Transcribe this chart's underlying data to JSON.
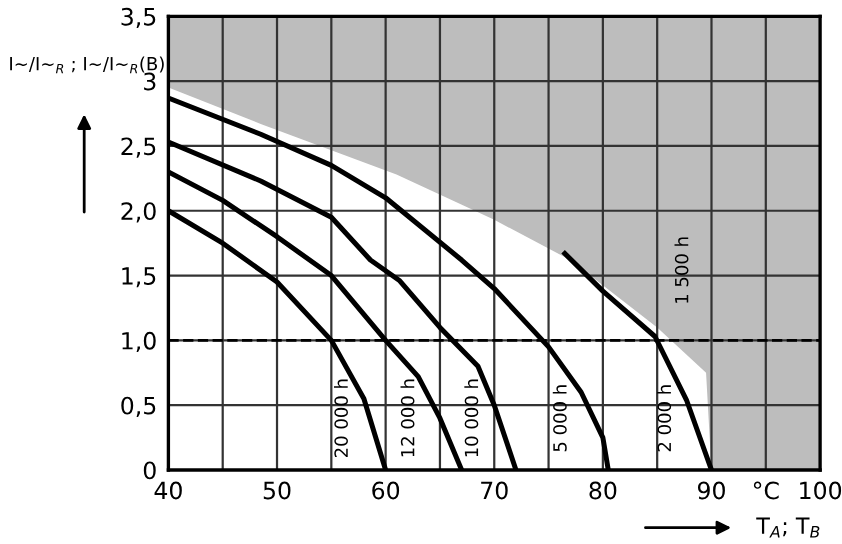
{
  "chart_data": {
    "type": "line",
    "ylabel": "I~/I~$_{R}$ ; I~/I~$_{R}$(B)",
    "xlabel": "T$_{A}$; T$_{B}$",
    "xlim": [
      40,
      100
    ],
    "ylim": [
      0,
      3.5
    ],
    "xticks": [
      40,
      {
        "value": 45,
        "label": null
      },
      50,
      {
        "value": 55,
        "label": null
      },
      60,
      {
        "value": 65,
        "label": null
      },
      70,
      {
        "value": 75,
        "label": null
      },
      80,
      {
        "value": 85,
        "label": null
      },
      90,
      {
        "value": 95,
        "label": "°C"
      },
      100
    ],
    "yticks": [
      {
        "value": 0,
        "label": "0"
      },
      {
        "value": 0.5,
        "label": "0,5"
      },
      {
        "value": 1.0,
        "label": "1,0"
      },
      {
        "value": 1.5,
        "label": "1,5"
      },
      {
        "value": 2.0,
        "label": "2,0"
      },
      {
        "value": 2.5,
        "label": "2,5"
      },
      {
        "value": 3.0,
        "label": "3"
      },
      {
        "value": 3.5,
        "label": "3,5"
      }
    ],
    "grid": true,
    "legend": false,
    "marker": "none",
    "line_style": "solid",
    "series": [
      {
        "type": "area",
        "color": "#ffffff",
        "x": [
          40,
          48.5,
          61,
          70,
          77,
          85,
          89.5,
          90
        ],
        "values": [
          2.95,
          2.67,
          2.28,
          1.93,
          1.62,
          1.1,
          0.75,
          0
        ]
      },
      {
        "name": "20 000 h",
        "color": "#000000",
        "x": [
          40,
          45,
          50,
          55,
          58,
          60
        ],
        "values": [
          2.0,
          1.75,
          1.45,
          1.0,
          0.55,
          0
        ]
      },
      {
        "name": "12 000 h",
        "color": "#000000",
        "x": [
          40,
          45,
          50,
          55,
          60,
          63,
          65,
          67
        ],
        "values": [
          2.3,
          2.08,
          1.8,
          1.5,
          1.0,
          0.72,
          0.4,
          0
        ]
      },
      {
        "name": "10 000 h",
        "color": "#000000",
        "x": [
          40,
          48.5,
          55,
          58.6,
          61.3,
          65,
          68.5,
          70,
          72
        ],
        "values": [
          2.53,
          2.23,
          1.95,
          1.62,
          1.46,
          1.1,
          0.8,
          0.5,
          0
        ]
      },
      {
        "name": "5 000 h",
        "color": "#000000",
        "x": [
          40,
          48.5,
          55,
          60,
          67,
          70,
          75,
          78,
          80,
          80.5
        ],
        "values": [
          2.87,
          2.59,
          2.35,
          2.1,
          1.62,
          1.4,
          0.95,
          0.6,
          0.25,
          0
        ]
      },
      {
        "name": "2 000 h",
        "color": "#000000",
        "x": [
          76.5,
          80,
          84.8,
          87.7,
          90
        ],
        "values": [
          1.67,
          1.38,
          1.03,
          0.54,
          0
        ]
      }
    ],
    "ref_lines": [
      {
        "axis": "y",
        "value": 1.0,
        "label": null,
        "color": "#000000",
        "line_style": "dashed"
      }
    ],
    "annotations": [
      "1 500 h"
    ]
  }
}
